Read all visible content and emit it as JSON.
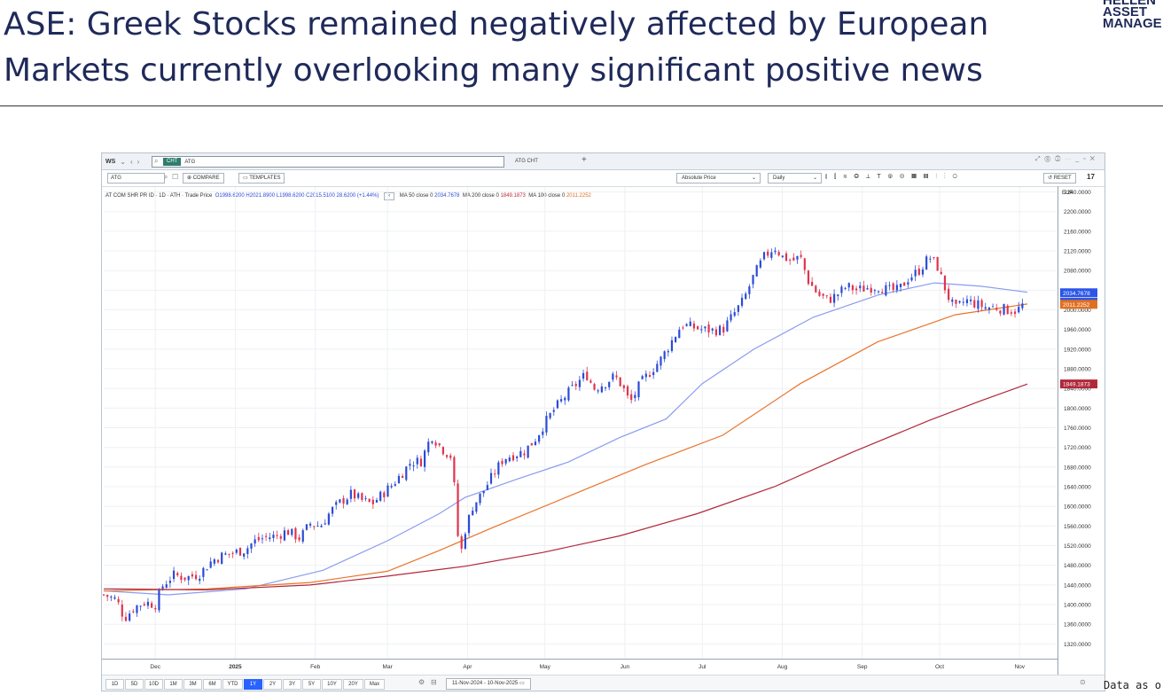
{
  "slide": {
    "title_line1": "ASE: Greek Stocks remained negatively affected by European",
    "title_line2": "Markets currently overlooking many significant positive news",
    "logo_line1": "HELLEN",
    "logo_line2": "ASSET",
    "logo_line3": "MANAGE",
    "footnote": "Data as o"
  },
  "terminal": {
    "ws_label": "WS",
    "cmd_chip": "CHT",
    "cmd_text": "ATG",
    "tab_title": "ATG CHT",
    "plus": "+",
    "security": "ATG",
    "compare_label": "COMPARE",
    "templates_label": "TEMPLATES",
    "price_mode": "Absolute Price",
    "interval": "Daily",
    "reset_label": "RESET",
    "tv_logo": "17",
    "currency": "EUR",
    "date_range": "11-Nov-2024 - 10-Nov-2025"
  },
  "legend": {
    "instrument": "AT COM SHR PR ID · 1D · ATH · Trade Price",
    "open": "O1998.6200",
    "high": "H2021.8900",
    "low": "L1998.6200",
    "close": "C2015.5100",
    "change": "28.6200 (+1.44%)",
    "ma50_label": "MA 50 close 0",
    "ma50_value": "2034.7678",
    "ma200_label": "MA 200 close 0",
    "ma200_value": "1849.1873",
    "ma100_label": "MA 100 close 0",
    "ma100_value": "2011.2252"
  },
  "range_buttons": [
    "1D",
    "5D",
    "10D",
    "1M",
    "3M",
    "6M",
    "YTD",
    "1Y",
    "2Y",
    "3Y",
    "5Y",
    "10Y",
    "20Y",
    "Max"
  ],
  "active_range": "1Y",
  "chart_data": {
    "type": "candlestick",
    "title": "AT COM SHR PR ID · 1D · ATH · Trade Price",
    "ylabel": "EUR",
    "ylim": [
      1290,
      2250
    ],
    "y_ticks": [
      "2240.0000",
      "2200.0000",
      "2160.0000",
      "2120.0000",
      "2080.0000",
      "2040.0000",
      "2000.0000",
      "1960.0000",
      "1920.0000",
      "1880.0000",
      "1840.0000",
      "1800.0000",
      "1760.0000",
      "1720.0000",
      "1680.0000",
      "1640.0000",
      "1600.0000",
      "1560.0000",
      "1520.0000",
      "1480.0000",
      "1440.0000",
      "1400.0000",
      "1360.0000",
      "1320.0000"
    ],
    "y_tick_values": [
      2240,
      2200,
      2160,
      2120,
      2080,
      2040,
      2000,
      1960,
      1920,
      1880,
      1840,
      1800,
      1760,
      1720,
      1680,
      1640,
      1600,
      1560,
      1520,
      1480,
      1440,
      1400,
      1360,
      1320
    ],
    "x_labels": [
      "Dec",
      "2025",
      "Feb",
      "Mar",
      "Apr",
      "May",
      "Jun",
      "Jul",
      "Aug",
      "Sep",
      "Oct",
      "Nov"
    ],
    "x_label_days": [
      20,
      51,
      82,
      110,
      141,
      171,
      202,
      232,
      263,
      294,
      324,
      355
    ],
    "x_range_days": [
      0,
      369
    ],
    "close_path": [
      [
        0,
        1420
      ],
      [
        5,
        1410
      ],
      [
        8,
        1372
      ],
      [
        12,
        1395
      ],
      [
        16,
        1405
      ],
      [
        20,
        1400
      ],
      [
        23,
        1440
      ],
      [
        27,
        1460
      ],
      [
        32,
        1455
      ],
      [
        37,
        1462
      ],
      [
        42,
        1490
      ],
      [
        46,
        1500
      ],
      [
        50,
        1505
      ],
      [
        55,
        1512
      ],
      [
        58,
        1528
      ],
      [
        62,
        1536
      ],
      [
        67,
        1540
      ],
      [
        71,
        1550
      ],
      [
        76,
        1535
      ],
      [
        80,
        1565
      ],
      [
        84,
        1560
      ],
      [
        88,
        1590
      ],
      [
        92,
        1610
      ],
      [
        96,
        1625
      ],
      [
        100,
        1612
      ],
      [
        104,
        1605
      ],
      [
        108,
        1625
      ],
      [
        112,
        1645
      ],
      [
        116,
        1670
      ],
      [
        119,
        1690
      ],
      [
        123,
        1692
      ],
      [
        127,
        1745
      ],
      [
        131,
        1718
      ],
      [
        135,
        1700
      ],
      [
        138,
        1490
      ],
      [
        140,
        1550
      ],
      [
        143,
        1600
      ],
      [
        147,
        1630
      ],
      [
        151,
        1665
      ],
      [
        155,
        1698
      ],
      [
        159,
        1705
      ],
      [
        163,
        1712
      ],
      [
        167,
        1735
      ],
      [
        171,
        1770
      ],
      [
        175,
        1800
      ],
      [
        179,
        1825
      ],
      [
        183,
        1848
      ],
      [
        187,
        1870
      ],
      [
        190,
        1840
      ],
      [
        194,
        1850
      ],
      [
        198,
        1865
      ],
      [
        201,
        1845
      ],
      [
        204,
        1810
      ],
      [
        208,
        1850
      ],
      [
        212,
        1875
      ],
      [
        216,
        1900
      ],
      [
        220,
        1935
      ],
      [
        224,
        1970
      ],
      [
        228,
        1965
      ],
      [
        232,
        1960
      ],
      [
        236,
        1958
      ],
      [
        240,
        1960
      ],
      [
        244,
        1990
      ],
      [
        248,
        2020
      ],
      [
        252,
        2070
      ],
      [
        256,
        2108
      ],
      [
        260,
        2128
      ],
      [
        263,
        2108
      ],
      [
        267,
        2100
      ],
      [
        270,
        2108
      ],
      [
        273,
        2060
      ],
      [
        277,
        2030
      ],
      [
        281,
        2020
      ],
      [
        284,
        2030
      ],
      [
        288,
        2048
      ],
      [
        292,
        2040
      ],
      [
        296,
        2045
      ],
      [
        300,
        2048
      ],
      [
        304,
        2040
      ],
      [
        308,
        2040
      ],
      [
        312,
        2065
      ],
      [
        316,
        2080
      ],
      [
        320,
        2108
      ],
      [
        323,
        2090
      ],
      [
        327,
        2030
      ],
      [
        330,
        2000
      ],
      [
        334,
        2020
      ],
      [
        338,
        2012
      ],
      [
        342,
        2005
      ],
      [
        346,
        2005
      ],
      [
        350,
        2000
      ],
      [
        354,
        1998
      ],
      [
        357,
        2015
      ]
    ],
    "series": [
      {
        "name": "MA 50 close 0",
        "color": "#8a9cf0",
        "values": [
          [
            0,
            1428
          ],
          [
            25,
            1420
          ],
          [
            55,
            1432
          ],
          [
            85,
            1470
          ],
          [
            110,
            1530
          ],
          [
            130,
            1585
          ],
          [
            140,
            1618
          ],
          [
            160,
            1655
          ],
          [
            180,
            1690
          ],
          [
            200,
            1740
          ],
          [
            218,
            1778
          ],
          [
            232,
            1850
          ],
          [
            252,
            1920
          ],
          [
            275,
            1985
          ],
          [
            300,
            2030
          ],
          [
            322,
            2055
          ],
          [
            340,
            2048
          ],
          [
            358,
            2036
          ]
        ]
      },
      {
        "name": "MA 100 close 0",
        "color": "#e8742a",
        "values": [
          [
            0,
            1428
          ],
          [
            40,
            1432
          ],
          [
            80,
            1445
          ],
          [
            110,
            1468
          ],
          [
            130,
            1510
          ],
          [
            150,
            1555
          ],
          [
            180,
            1620
          ],
          [
            210,
            1685
          ],
          [
            240,
            1745
          ],
          [
            270,
            1850
          ],
          [
            300,
            1935
          ],
          [
            330,
            1990
          ],
          [
            358,
            2012
          ]
        ]
      },
      {
        "name": "MA 200 close 0",
        "color": "#b0283a",
        "values": [
          [
            0,
            1432
          ],
          [
            40,
            1430
          ],
          [
            80,
            1440
          ],
          [
            110,
            1458
          ],
          [
            140,
            1478
          ],
          [
            170,
            1506
          ],
          [
            200,
            1540
          ],
          [
            230,
            1585
          ],
          [
            260,
            1640
          ],
          [
            290,
            1710
          ],
          [
            320,
            1775
          ],
          [
            340,
            1815
          ],
          [
            358,
            1849
          ]
        ]
      }
    ],
    "price_labels": [
      {
        "text": "2034.7678",
        "value": 2034.7678,
        "color": "#2b55e8"
      },
      {
        "text": "2015.5100",
        "value": 2015.51,
        "color": "#2b55e8"
      },
      {
        "text": "2011.2252",
        "value": 2011.2252,
        "color": "#e07020"
      },
      {
        "text": "1849.1873",
        "value": 1849.1873,
        "color": "#b0283a"
      }
    ],
    "up_color": "#2b4bd6",
    "down_color": "#e0344c"
  }
}
